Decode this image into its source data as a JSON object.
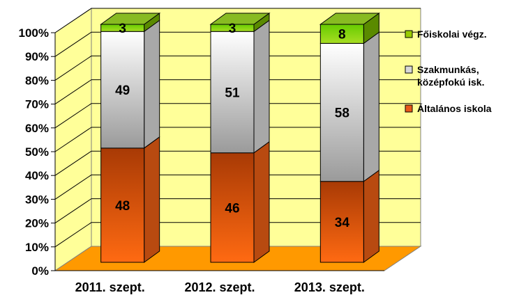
{
  "chart_data": {
    "type": "bar",
    "stacked": true,
    "percent": true,
    "three_d": true,
    "categories": [
      "2011. szept.",
      "2012. szept.",
      "2013. szept."
    ],
    "series": [
      {
        "name": "Általános iskola",
        "values": [
          48,
          46,
          34
        ],
        "color": "#e8581a"
      },
      {
        "name": "Szakmunkás, középfokú isk.",
        "values": [
          49,
          51,
          58
        ],
        "color": "#d8d8d8"
      },
      {
        "name": "Főiskolai végz.",
        "values": [
          3,
          3,
          8
        ],
        "color": "#99cc00"
      }
    ],
    "y_ticks": [
      "0%",
      "10%",
      "20%",
      "30%",
      "40%",
      "50%",
      "60%",
      "70%",
      "80%",
      "90%",
      "100%"
    ],
    "ylim": [
      0,
      100
    ],
    "legend_position": "right",
    "wall_color": "#ffff99",
    "floor_color": "#ff9900"
  }
}
